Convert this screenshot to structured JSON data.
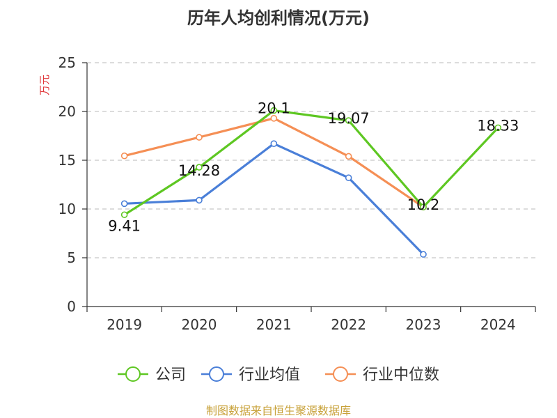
{
  "chart_data": {
    "type": "line",
    "title": "历年人均创利情况(万元)",
    "ylabel": "万元",
    "xlabel": "",
    "categories": [
      "2019",
      "2020",
      "2021",
      "2022",
      "2023",
      "2024"
    ],
    "ylim": [
      0,
      25
    ],
    "yticks": [
      0,
      5,
      10,
      15,
      20,
      25
    ],
    "grid": true,
    "legend_position": "bottom",
    "series": [
      {
        "name": "公司",
        "color": "#5ec722",
        "values": [
          9.41,
          14.28,
          20.1,
          19.07,
          10.2,
          18.33
        ],
        "labels": [
          "9.41",
          "14.28",
          "20.1",
          "19.07",
          "10.2",
          "18.33"
        ]
      },
      {
        "name": "行业均值",
        "color": "#4a7fd8",
        "values": [
          10.55,
          10.9,
          16.7,
          13.2,
          5.35,
          null
        ]
      },
      {
        "name": "行业中位数",
        "color": "#f58f55",
        "values": [
          15.45,
          17.35,
          19.3,
          15.4,
          10.2,
          null
        ]
      }
    ]
  },
  "source_text": "制图数据来自恒生聚源数据库"
}
